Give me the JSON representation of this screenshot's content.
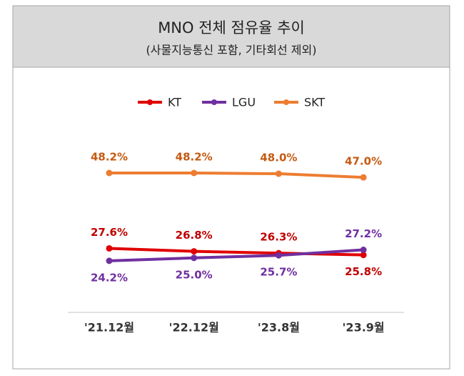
{
  "chart_data": {
    "type": "line",
    "title": "MNO 전체 점유율 추이",
    "subtitle": "(사물지능통신 포함, 기타회선 제외)",
    "categories": [
      "'21.12월",
      "'22.12월",
      "'23.8월",
      "'23.9월"
    ],
    "series": [
      {
        "name": "KT",
        "color": "#e00000",
        "label_color": "#c00000",
        "values": [
          27.6,
          26.8,
          26.3,
          25.8
        ],
        "value_labels": [
          "27.6%",
          "26.8%",
          "26.3%",
          "25.8%"
        ]
      },
      {
        "name": "LGU",
        "color": "#7030a0",
        "label_color": "#7030a0",
        "values": [
          24.2,
          25.0,
          25.7,
          27.2
        ],
        "value_labels": [
          "24.2%",
          "25.0%",
          "25.7%",
          "27.2%"
        ]
      },
      {
        "name": "SKT",
        "color": "#ed7d31",
        "label_color": "#c55a11",
        "values": [
          48.2,
          48.2,
          48.0,
          47.0
        ],
        "value_labels": [
          "48.2%",
          "48.2%",
          "48.0%",
          "47.0%"
        ]
      }
    ]
  }
}
